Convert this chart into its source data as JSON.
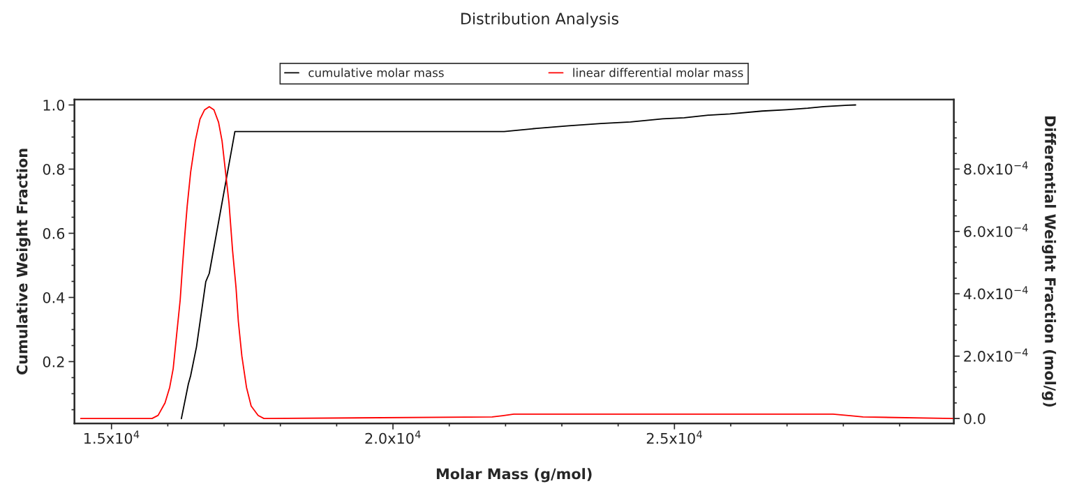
{
  "chart_data": {
    "type": "line",
    "title": "Distribution Analysis",
    "xlabel": "Molar Mass (g/mol)",
    "ylabel": "Cumulative Weight Fraction",
    "y2label": "Differential Weight Fraction (mol/g)",
    "xlim": [
      14342,
      29963
    ],
    "ylim": [
      0.007,
      1.017
    ],
    "y2lim": [
      -1.6e-05,
      0.001023
    ],
    "xticks": [
      {
        "value": 15000,
        "label": "1.5x10$^{4}$"
      },
      {
        "value": 16000,
        "label": null
      },
      {
        "value": 17000,
        "label": null
      },
      {
        "value": 18000,
        "label": null
      },
      {
        "value": 19000,
        "label": null
      },
      {
        "value": 20000,
        "label": "2.0x10$^{4}$"
      },
      {
        "value": 21000,
        "label": null
      },
      {
        "value": 22000,
        "label": null
      },
      {
        "value": 23000,
        "label": null
      },
      {
        "value": 24000,
        "label": null
      },
      {
        "value": 25000,
        "label": "2.5x10$^{4}$"
      },
      {
        "value": 26000,
        "label": null
      },
      {
        "value": 27000,
        "label": null
      },
      {
        "value": 28000,
        "label": null
      },
      {
        "value": 29000,
        "label": null
      }
    ],
    "yticks": [
      {
        "value": 0.05,
        "label": null
      },
      {
        "value": 0.1,
        "label": null
      },
      {
        "value": 0.15,
        "label": null
      },
      0.2,
      {
        "value": 0.25,
        "label": null
      },
      {
        "value": 0.3,
        "label": null
      },
      {
        "value": 0.35,
        "label": null
      },
      0.4,
      {
        "value": 0.45,
        "label": null
      },
      {
        "value": 0.5,
        "label": null
      },
      {
        "value": 0.55,
        "label": null
      },
      0.6,
      {
        "value": 0.65,
        "label": null
      },
      {
        "value": 0.7,
        "label": null
      },
      {
        "value": 0.75,
        "label": null
      },
      0.8,
      {
        "value": 0.85,
        "label": null
      },
      {
        "value": 0.9,
        "label": null
      },
      {
        "value": 0.95,
        "label": null
      },
      {
        "value": 1.0,
        "label": "1.0"
      }
    ],
    "y2ticks": [
      {
        "value": 0,
        "label": "0.0"
      },
      {
        "value": 5e-05,
        "label": null
      },
      {
        "value": 0.0001,
        "label": null
      },
      {
        "value": 0.00015,
        "label": null
      },
      {
        "value": 0.0002,
        "label": "2.0x10$^{−4}$"
      },
      {
        "value": 0.00025,
        "label": null
      },
      {
        "value": 0.0003,
        "label": null
      },
      {
        "value": 0.00035,
        "label": null
      },
      {
        "value": 0.0004,
        "label": "4.0x10$^{−4}$"
      },
      {
        "value": 0.00045,
        "label": null
      },
      {
        "value": 0.0005,
        "label": null
      },
      {
        "value": 0.00055,
        "label": null
      },
      {
        "value": 0.0006,
        "label": "6.0x10$^{−4}$"
      },
      {
        "value": 0.00065,
        "label": null
      },
      {
        "value": 0.0007,
        "label": null
      },
      {
        "value": 0.00075,
        "label": null
      },
      {
        "value": 0.0008,
        "label": "8.0x10$^{−4}$"
      },
      {
        "value": 0.00085,
        "label": null
      },
      {
        "value": 0.0009,
        "label": null
      },
      {
        "value": 0.00095,
        "label": null
      }
    ],
    "grid": false,
    "legend": "top",
    "marker": "none",
    "line_style": "solid",
    "series": [
      {
        "name": "cumulative molar mass",
        "color": "#000000",
        "x": [
          16241,
          16365,
          16406,
          16510,
          16675,
          16737,
          17192,
          21976,
          22550,
          23122,
          23695,
          24219,
          24792,
          25174,
          25603,
          25985,
          26557,
          26988,
          27368,
          27655,
          28084,
          28218
        ],
        "values": [
          0.022,
          0.13,
          0.156,
          0.246,
          0.449,
          0.475,
          0.917,
          0.917,
          0.927,
          0.935,
          0.942,
          0.947,
          0.957,
          0.96,
          0.968,
          0.972,
          0.981,
          0.985,
          0.99,
          0.995,
          0.999,
          1.0
        ]
      },
      {
        "name": "linear differential molar mass",
        "color": "#ff0000",
        "axis": "y2",
        "x": [
          14454,
          15720,
          15828,
          15951,
          16034,
          16096,
          16158,
          16220,
          16262,
          16303,
          16344,
          16406,
          16489,
          16572,
          16654,
          16737,
          16820,
          16902,
          16964,
          17026,
          17088,
          17150,
          17212,
          17254,
          17316,
          17398,
          17481,
          17605,
          17708,
          21762,
          21948,
          22146,
          27816,
          28126,
          28350,
          29950
        ],
        "values": [
          0,
          0,
          1e-05,
          5e-05,
          0.0001,
          0.00016,
          0.00027,
          0.00038,
          0.00049,
          0.00059,
          0.00068,
          0.00079,
          0.00089,
          0.00096,
          0.00099,
          0.001,
          0.00099,
          0.00095,
          0.00089,
          0.00079,
          0.00069,
          0.00054,
          0.00042,
          0.00031,
          0.0002,
          0.0001,
          4e-05,
          1e-05,
          0,
          5e-06,
          9e-06,
          1.4e-05,
          1.4e-05,
          9e-06,
          5e-06,
          0
        ]
      }
    ]
  }
}
